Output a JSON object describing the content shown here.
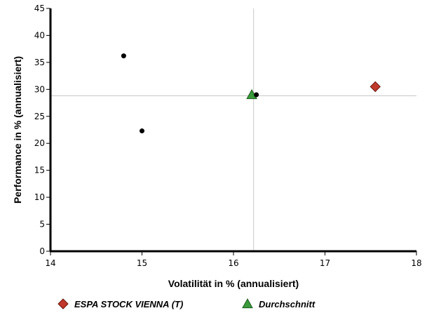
{
  "chart_data": {
    "type": "scatter",
    "title": "",
    "xlabel": "Volatilität in % (annualisiert)",
    "ylabel": "Performance in % (annualisiert)",
    "xlim": [
      14,
      18
    ],
    "ylim": [
      0,
      45
    ],
    "x_ticks": [
      14,
      15,
      16,
      17,
      18
    ],
    "y_ticks": [
      0,
      5,
      10,
      15,
      20,
      25,
      30,
      35,
      40,
      45
    ],
    "reference_lines": {
      "x": 16.22,
      "y": 28.8
    },
    "series": [
      {
        "name": "ESPA STOCK VIENNA (T)",
        "marker": "diamond",
        "color": "#c0392b",
        "points": [
          {
            "x": 17.55,
            "y": 30.5
          }
        ]
      },
      {
        "name": "Durchschnitt",
        "marker": "triangle",
        "color": "#3a9a3a",
        "points": [
          {
            "x": 16.2,
            "y": 29.0
          }
        ]
      },
      {
        "marker": "dot",
        "color": "#000000",
        "points": [
          {
            "x": 14.8,
            "y": 36.2
          },
          {
            "x": 15.0,
            "y": 22.3
          },
          {
            "x": 16.25,
            "y": 29.0
          }
        ]
      }
    ],
    "legend": {
      "position": "bottom",
      "items": [
        {
          "label": "ESPA STOCK VIENNA (T)",
          "marker": "diamond",
          "color": "#c0392b"
        },
        {
          "label": "Durchschnitt",
          "marker": "triangle",
          "color": "#3a9a3a"
        }
      ]
    },
    "grid": false
  }
}
